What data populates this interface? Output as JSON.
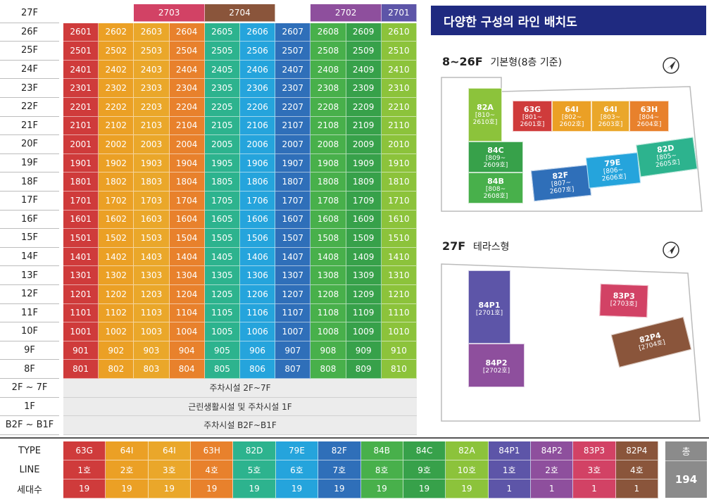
{
  "colors": {
    "line1": "#cf3b3b",
    "line2": "#eba025",
    "line3": "#eaa72a",
    "line4": "#e8812c",
    "line5": "#2db38e",
    "line6": "#25a4dc",
    "line7": "#2f6fb9",
    "line8": "#48b04b",
    "line9": "#37a14a",
    "line10": "#8cc33b",
    "p1": "#5d55a8",
    "p2": "#8e4f9d",
    "p3": "#d24265",
    "p4": "#8a553b",
    "total": "#8b8b8b",
    "title_bg": "#1f2a80"
  },
  "grid": {
    "floor_27": "27F",
    "units_27": [
      {
        "label": "2703",
        "color": "#d24265"
      },
      {
        "label": "2704",
        "color": "#8a553b"
      },
      {
        "label": "2702",
        "color": "#8e4f9d"
      },
      {
        "label": "2701",
        "color": "#5d55a8"
      }
    ],
    "floors": [
      "26F",
      "25F",
      "24F",
      "23F",
      "22F",
      "21F",
      "20F",
      "19F",
      "18F",
      "17F",
      "16F",
      "15F",
      "14F",
      "13F",
      "12F",
      "11F",
      "10F",
      "9F",
      "8F"
    ],
    "rows": [
      [
        "2601",
        "2602",
        "2603",
        "2604",
        "2605",
        "2606",
        "2607",
        "2608",
        "2609",
        "2610"
      ],
      [
        "2501",
        "2502",
        "2503",
        "2504",
        "2505",
        "2506",
        "2507",
        "2508",
        "2509",
        "2510"
      ],
      [
        "2401",
        "2402",
        "2403",
        "2404",
        "2405",
        "2406",
        "2407",
        "2408",
        "2409",
        "2410"
      ],
      [
        "2301",
        "2302",
        "2303",
        "2304",
        "2305",
        "2306",
        "2307",
        "2308",
        "2309",
        "2310"
      ],
      [
        "2201",
        "2202",
        "2203",
        "2204",
        "2205",
        "2206",
        "2207",
        "2208",
        "2209",
        "2210"
      ],
      [
        "2101",
        "2102",
        "2103",
        "2104",
        "2105",
        "2106",
        "2107",
        "2108",
        "2109",
        "2110"
      ],
      [
        "2001",
        "2002",
        "2003",
        "2004",
        "2005",
        "2006",
        "2007",
        "2008",
        "2009",
        "2010"
      ],
      [
        "1901",
        "1902",
        "1903",
        "1904",
        "1905",
        "1906",
        "1907",
        "1908",
        "1909",
        "1910"
      ],
      [
        "1801",
        "1802",
        "1803",
        "1804",
        "1805",
        "1806",
        "1807",
        "1808",
        "1809",
        "1810"
      ],
      [
        "1701",
        "1702",
        "1703",
        "1704",
        "1705",
        "1706",
        "1707",
        "1708",
        "1709",
        "1710"
      ],
      [
        "1601",
        "1602",
        "1603",
        "1604",
        "1605",
        "1606",
        "1607",
        "1608",
        "1609",
        "1610"
      ],
      [
        "1501",
        "1502",
        "1503",
        "1504",
        "1505",
        "1506",
        "1507",
        "1508",
        "1509",
        "1510"
      ],
      [
        "1401",
        "1402",
        "1403",
        "1404",
        "1405",
        "1406",
        "1407",
        "1408",
        "1409",
        "1410"
      ],
      [
        "1301",
        "1302",
        "1303",
        "1304",
        "1305",
        "1306",
        "1307",
        "1308",
        "1309",
        "1310"
      ],
      [
        "1201",
        "1202",
        "1203",
        "1204",
        "1205",
        "1206",
        "1207",
        "1208",
        "1209",
        "1210"
      ],
      [
        "1101",
        "1102",
        "1103",
        "1104",
        "1105",
        "1106",
        "1107",
        "1108",
        "1109",
        "1110"
      ],
      [
        "1001",
        "1002",
        "1003",
        "1004",
        "1005",
        "1006",
        "1007",
        "1008",
        "1009",
        "1010"
      ],
      [
        "901",
        "902",
        "903",
        "904",
        "905",
        "906",
        "907",
        "908",
        "909",
        "910"
      ],
      [
        "801",
        "802",
        "803",
        "804",
        "805",
        "806",
        "807",
        "808",
        "809",
        "810"
      ]
    ],
    "column_colors": [
      "#cf3b3b",
      "#eba025",
      "#eaa72a",
      "#e8812c",
      "#2db38e",
      "#25a4dc",
      "#2f6fb9",
      "#48b04b",
      "#37a14a",
      "#8cc33b"
    ],
    "lower": [
      {
        "floor": "2F ~ 7F",
        "desc": "주차시설 2F~7F"
      },
      {
        "floor": "1F",
        "desc": "근린생활시설 및 주차시설 1F"
      },
      {
        "floor": "B2F ~ B1F",
        "desc": "주차시설 B2F~B1F"
      }
    ]
  },
  "legend": {
    "row_labels": [
      "TYPE",
      "LINE",
      "세대수"
    ],
    "columns": [
      {
        "type": "63G",
        "line": "1호",
        "count": "19",
        "color": "#cf3b3b"
      },
      {
        "type": "64I",
        "line": "2호",
        "count": "19",
        "color": "#eba025"
      },
      {
        "type": "64I",
        "line": "3호",
        "count": "19",
        "color": "#eaa72a"
      },
      {
        "type": "63H",
        "line": "4호",
        "count": "19",
        "color": "#e8812c"
      },
      {
        "type": "82D",
        "line": "5호",
        "count": "19",
        "color": "#2db38e"
      },
      {
        "type": "79E",
        "line": "6호",
        "count": "19",
        "color": "#25a4dc"
      },
      {
        "type": "82F",
        "line": "7호",
        "count": "19",
        "color": "#2f6fb9"
      },
      {
        "type": "84B",
        "line": "8호",
        "count": "19",
        "color": "#48b04b"
      },
      {
        "type": "84C",
        "line": "9호",
        "count": "19",
        "color": "#37a14a"
      },
      {
        "type": "82A",
        "line": "10호",
        "count": "19",
        "color": "#8cc33b"
      },
      {
        "type": "84P1",
        "line": "1호",
        "count": "1",
        "color": "#5d55a8"
      },
      {
        "type": "84P2",
        "line": "2호",
        "count": "1",
        "color": "#8e4f9d"
      },
      {
        "type": "83P3",
        "line": "3호",
        "count": "1",
        "color": "#d24265"
      },
      {
        "type": "82P4",
        "line": "4호",
        "count": "1",
        "color": "#8a553b"
      }
    ],
    "total_label": "총",
    "total_value": "194"
  },
  "panel": {
    "title": "다양한 구성의 라인 배치도",
    "plan1_floor": "8~26F",
    "plan1_desc": "기본형(8층 기준)",
    "plan2_floor": "27F",
    "plan2_desc": "테라스형",
    "compass_icon": "compass-icon",
    "units1": {
      "u82A": {
        "t": "82A",
        "r1": "[810~",
        "r2": "2610호]"
      },
      "u63G": {
        "t": "63G",
        "r1": "[801~",
        "r2": "2601호]"
      },
      "u64I_a": {
        "t": "64I",
        "r1": "[802~",
        "r2": "2602호]"
      },
      "u64I_b": {
        "t": "64I",
        "r1": "[803~",
        "r2": "2603호]"
      },
      "u63H": {
        "t": "63H",
        "r1": "[804~",
        "r2": "2604호]"
      },
      "u84C": {
        "t": "84C",
        "r1": "[809~",
        "r2": "2609호]"
      },
      "u84B": {
        "t": "84B",
        "r1": "[808~",
        "r2": "2608호]"
      },
      "u82F": {
        "t": "82F",
        "r1": "[807~",
        "r2": "2607호]"
      },
      "u79E": {
        "t": "79E",
        "r1": "[806~",
        "r2": "2606호]"
      },
      "u82D": {
        "t": "82D",
        "r1": "[805~",
        "r2": "2605호]"
      }
    },
    "units2": {
      "u84P1": {
        "t": "84P1",
        "r": "[2701호]"
      },
      "u84P2": {
        "t": "84P2",
        "r": "[2702호]"
      },
      "u83P3": {
        "t": "83P3",
        "r": "[2703호]"
      },
      "u82P4": {
        "t": "82P4",
        "r": "[2704호]"
      }
    }
  }
}
